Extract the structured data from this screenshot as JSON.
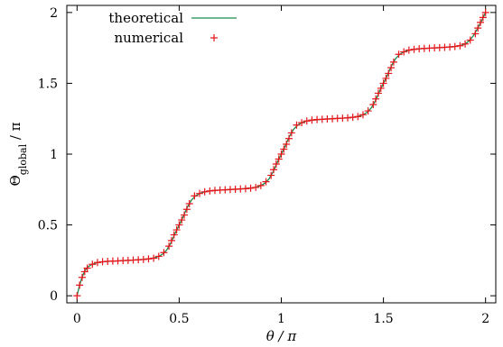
{
  "chart_data": {
    "type": "line",
    "title": "",
    "xlabel": "θ / π",
    "ylabel_main": "Θ",
    "ylabel_sub": "global",
    "ylabel_tail": " / π",
    "xlim": [
      -0.05,
      2.05
    ],
    "ylim": [
      -0.05,
      2.05
    ],
    "xticks": [
      {
        "value": 0,
        "label": "0"
      },
      {
        "value": 0.5,
        "label": "0.5"
      },
      {
        "value": 1,
        "label": "1"
      },
      {
        "value": 1.5,
        "label": "1.5"
      },
      {
        "value": 2,
        "label": "2"
      }
    ],
    "yticks": [
      {
        "value": 0,
        "label": "0"
      },
      {
        "value": 0.5,
        "label": "0.5"
      },
      {
        "value": 1,
        "label": "1"
      },
      {
        "value": 1.5,
        "label": "1.5"
      },
      {
        "value": 2,
        "label": "2"
      }
    ],
    "grid": false,
    "legend_position": "top-left",
    "series": [
      {
        "name": "theoretical",
        "style": "line",
        "color": "#1a8a4a",
        "x": [
          0,
          0.01,
          0.02,
          0.03,
          0.04,
          0.05,
          0.07,
          0.1,
          0.15,
          0.2,
          0.25,
          0.3,
          0.35,
          0.38,
          0.4,
          0.42,
          0.44,
          0.46,
          0.48,
          0.5,
          0.52,
          0.54,
          0.56,
          0.58,
          0.6,
          0.62,
          0.65,
          0.7,
          0.75,
          0.8,
          0.85,
          0.88,
          0.9,
          0.92,
          0.94,
          0.96,
          0.98,
          1.0,
          1.02,
          1.04,
          1.06,
          1.08,
          1.1,
          1.12,
          1.15,
          1.2,
          1.25,
          1.3,
          1.35,
          1.38,
          1.4,
          1.42,
          1.44,
          1.46,
          1.48,
          1.5,
          1.52,
          1.54,
          1.56,
          1.58,
          1.6,
          1.62,
          1.65,
          1.7,
          1.75,
          1.8,
          1.85,
          1.88,
          1.9,
          1.92,
          1.94,
          1.96,
          1.98,
          2.0
        ],
        "y": [
          0,
          0.06,
          0.11,
          0.15,
          0.18,
          0.2,
          0.22,
          0.235,
          0.243,
          0.246,
          0.25,
          0.254,
          0.26,
          0.268,
          0.278,
          0.295,
          0.325,
          0.375,
          0.44,
          0.5,
          0.56,
          0.625,
          0.675,
          0.705,
          0.722,
          0.732,
          0.74,
          0.746,
          0.75,
          0.754,
          0.76,
          0.768,
          0.778,
          0.795,
          0.825,
          0.875,
          0.94,
          1.0,
          1.06,
          1.125,
          1.175,
          1.205,
          1.222,
          1.232,
          1.24,
          1.246,
          1.25,
          1.254,
          1.26,
          1.268,
          1.278,
          1.295,
          1.325,
          1.375,
          1.44,
          1.5,
          1.56,
          1.625,
          1.675,
          1.705,
          1.722,
          1.732,
          1.74,
          1.746,
          1.75,
          1.754,
          1.76,
          1.768,
          1.778,
          1.8,
          1.835,
          1.885,
          1.94,
          2.0
        ]
      },
      {
        "name": "numerical",
        "style": "markers",
        "marker": "+",
        "color": "#e8141a",
        "x": [
          0,
          0.0125,
          0.025,
          0.0375,
          0.05,
          0.075,
          0.1,
          0.125,
          0.15,
          0.175,
          0.2,
          0.225,
          0.25,
          0.275,
          0.3,
          0.325,
          0.35,
          0.375,
          0.4,
          0.425,
          0.45,
          0.4625,
          0.475,
          0.4875,
          0.5,
          0.5125,
          0.525,
          0.5375,
          0.55,
          0.575,
          0.6,
          0.625,
          0.65,
          0.675,
          0.7,
          0.725,
          0.75,
          0.775,
          0.8,
          0.825,
          0.85,
          0.875,
          0.9,
          0.925,
          0.95,
          0.9625,
          0.975,
          0.9875,
          1.0,
          1.0125,
          1.025,
          1.0375,
          1.05,
          1.075,
          1.1,
          1.125,
          1.15,
          1.175,
          1.2,
          1.225,
          1.25,
          1.275,
          1.3,
          1.325,
          1.35,
          1.375,
          1.4,
          1.425,
          1.45,
          1.4625,
          1.475,
          1.4875,
          1.5,
          1.5125,
          1.525,
          1.5375,
          1.55,
          1.575,
          1.6,
          1.625,
          1.65,
          1.675,
          1.7,
          1.725,
          1.75,
          1.775,
          1.8,
          1.825,
          1.85,
          1.875,
          1.9,
          1.925,
          1.95,
          1.9625,
          1.975,
          1.9875,
          2.0
        ],
        "y": [
          0,
          0.075,
          0.13,
          0.17,
          0.195,
          0.222,
          0.235,
          0.24,
          0.243,
          0.245,
          0.246,
          0.248,
          0.25,
          0.252,
          0.254,
          0.256,
          0.26,
          0.265,
          0.278,
          0.305,
          0.35,
          0.39,
          0.43,
          0.465,
          0.5,
          0.535,
          0.57,
          0.61,
          0.65,
          0.705,
          0.722,
          0.734,
          0.74,
          0.744,
          0.746,
          0.748,
          0.75,
          0.752,
          0.754,
          0.756,
          0.76,
          0.765,
          0.778,
          0.805,
          0.85,
          0.89,
          0.93,
          0.965,
          1.0,
          1.035,
          1.07,
          1.11,
          1.15,
          1.205,
          1.222,
          1.234,
          1.24,
          1.244,
          1.246,
          1.248,
          1.25,
          1.252,
          1.254,
          1.256,
          1.26,
          1.265,
          1.278,
          1.305,
          1.35,
          1.39,
          1.43,
          1.465,
          1.5,
          1.535,
          1.57,
          1.61,
          1.65,
          1.705,
          1.722,
          1.734,
          1.74,
          1.744,
          1.746,
          1.748,
          1.75,
          1.752,
          1.754,
          1.756,
          1.76,
          1.765,
          1.778,
          1.805,
          1.85,
          1.89,
          1.93,
          1.965,
          2.0
        ]
      }
    ]
  }
}
